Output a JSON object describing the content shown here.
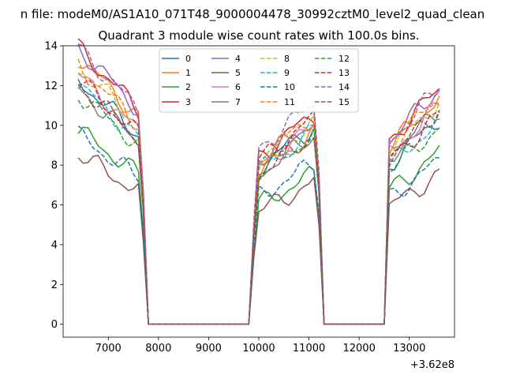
{
  "figure": {
    "suptitle": "n file: modeM0/AS1A10_071T48_9000004478_30992cztM0_level2_quad_clean",
    "title": "Quadrant 3 module wise count rates with 100.0s bins.",
    "x_offset_label": "+3.62e8"
  },
  "chart_data": {
    "type": "line",
    "title": "Quadrant 3 module wise count rates with 100.0s bins.",
    "xlabel": "",
    "ylabel": "",
    "x_offset": 362000000,
    "xlim": [
      6100,
      13900
    ],
    "ylim": [
      -0.65,
      14
    ],
    "xticks": [
      7000,
      8000,
      9000,
      10000,
      11000,
      12000,
      13000
    ],
    "yticks": [
      0,
      2,
      4,
      6,
      8,
      10,
      12,
      14
    ],
    "xtick_labels": [
      "7000",
      "8000",
      "9000",
      "10000",
      "11000",
      "12000",
      "13000"
    ],
    "ytick_labels": [
      "0",
      "2",
      "4",
      "6",
      "8",
      "10",
      "12",
      "14"
    ],
    "grid": false,
    "legend": {
      "location": "top-center",
      "columns": 4
    },
    "segment_starts": [
      6400,
      9900,
      12600
    ],
    "segment_ends": [
      7600,
      11100,
      13600
    ],
    "gap_x": [
      7700,
      7800,
      8000,
      8500,
      9000,
      9500,
      9800,
      11200,
      11300,
      11500,
      12000,
      12500
    ],
    "series": [
      {
        "name": "0",
        "color": "#1f77b4",
        "dash": "solid",
        "levels": [
          10.6,
          9.2,
          9.6
        ]
      },
      {
        "name": "1",
        "color": "#ff7f0e",
        "dash": "solid",
        "levels": [
          11.6,
          8.9,
          10.6
        ]
      },
      {
        "name": "2",
        "color": "#2ca02c",
        "dash": "solid",
        "levels": [
          8.4,
          7.0,
          8.0
        ]
      },
      {
        "name": "3",
        "color": "#d62728",
        "dash": "solid",
        "levels": [
          12.0,
          9.8,
          11.0
        ]
      },
      {
        "name": "4",
        "color": "#9467bd",
        "dash": "solid",
        "levels": [
          12.0,
          9.5,
          11.0
        ]
      },
      {
        "name": "5",
        "color": "#8c564b",
        "dash": "solid",
        "levels": [
          7.4,
          6.6,
          7.0
        ]
      },
      {
        "name": "6",
        "color": "#e377c2",
        "dash": "solid",
        "levels": [
          10.8,
          9.2,
          10.2
        ]
      },
      {
        "name": "7",
        "color": "#7f7f7f",
        "dash": "solid",
        "levels": [
          10.2,
          8.8,
          10.0
        ]
      },
      {
        "name": "8",
        "color": "#bcbd22",
        "dash": "dashed",
        "levels": [
          11.2,
          9.5,
          10.4
        ]
      },
      {
        "name": "9",
        "color": "#17becf",
        "dash": "dashed",
        "levels": [
          10.4,
          9.0,
          9.5
        ]
      },
      {
        "name": "10",
        "color": "#1f77b4",
        "dash": "dashed",
        "levels": [
          8.2,
          7.5,
          7.6
        ]
      },
      {
        "name": "11",
        "color": "#ff7f0e",
        "dash": "dashed",
        "levels": [
          11.2,
          9.7,
          10.6
        ]
      },
      {
        "name": "12",
        "color": "#2ca02c",
        "dash": "dashed",
        "levels": [
          10.0,
          8.8,
          9.2
        ]
      },
      {
        "name": "13",
        "color": "#d62728",
        "dash": "dashed",
        "levels": [
          10.6,
          9.6,
          9.8
        ]
      },
      {
        "name": "14",
        "color": "#9467bd",
        "dash": "dashed",
        "levels": [
          12.0,
          10.3,
          11.0
        ]
      },
      {
        "name": "15",
        "color": "#8c564b",
        "dash": "dashed",
        "levels": [
          10.4,
          8.8,
          10.0
        ]
      }
    ]
  }
}
